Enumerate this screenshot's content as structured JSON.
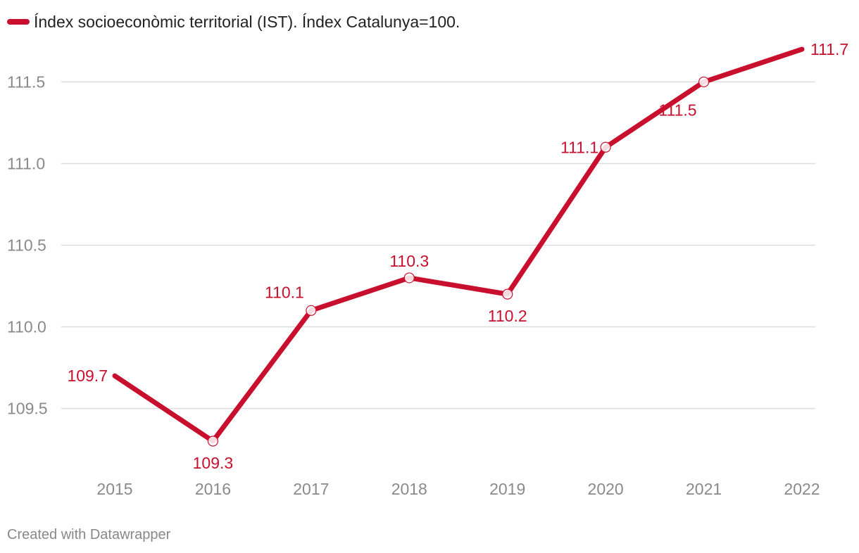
{
  "colors": {
    "series": "#c8102e",
    "grid": "#dddddd",
    "axis_text": "#8a8a8a"
  },
  "legend": {
    "label": "Índex socioeconòmic territorial (IST). Índex Catalunya=100."
  },
  "footer": {
    "credit": "Created with Datawrapper"
  },
  "chart_data": {
    "type": "line",
    "x": [
      "2015",
      "2016",
      "2017",
      "2018",
      "2019",
      "2020",
      "2021",
      "2022"
    ],
    "series": [
      {
        "name": "Índex socioeconòmic territorial (IST). Índex Catalunya=100.",
        "values": [
          109.7,
          109.3,
          110.1,
          110.3,
          110.2,
          111.1,
          111.5,
          111.7
        ],
        "labels": [
          "109.7",
          "109.3",
          "110.1",
          "110.3",
          "110.2",
          "111.1",
          "111.5",
          "111.7"
        ]
      }
    ],
    "y_ticks": [
      109.5,
      110.0,
      110.5,
      111.0,
      111.5
    ],
    "y_tick_labels": [
      "109.5",
      "110.0",
      "110.5",
      "111.0",
      "111.5"
    ],
    "ylim": [
      109.3,
      111.7
    ],
    "grid": true,
    "legend_position": "top-left"
  }
}
